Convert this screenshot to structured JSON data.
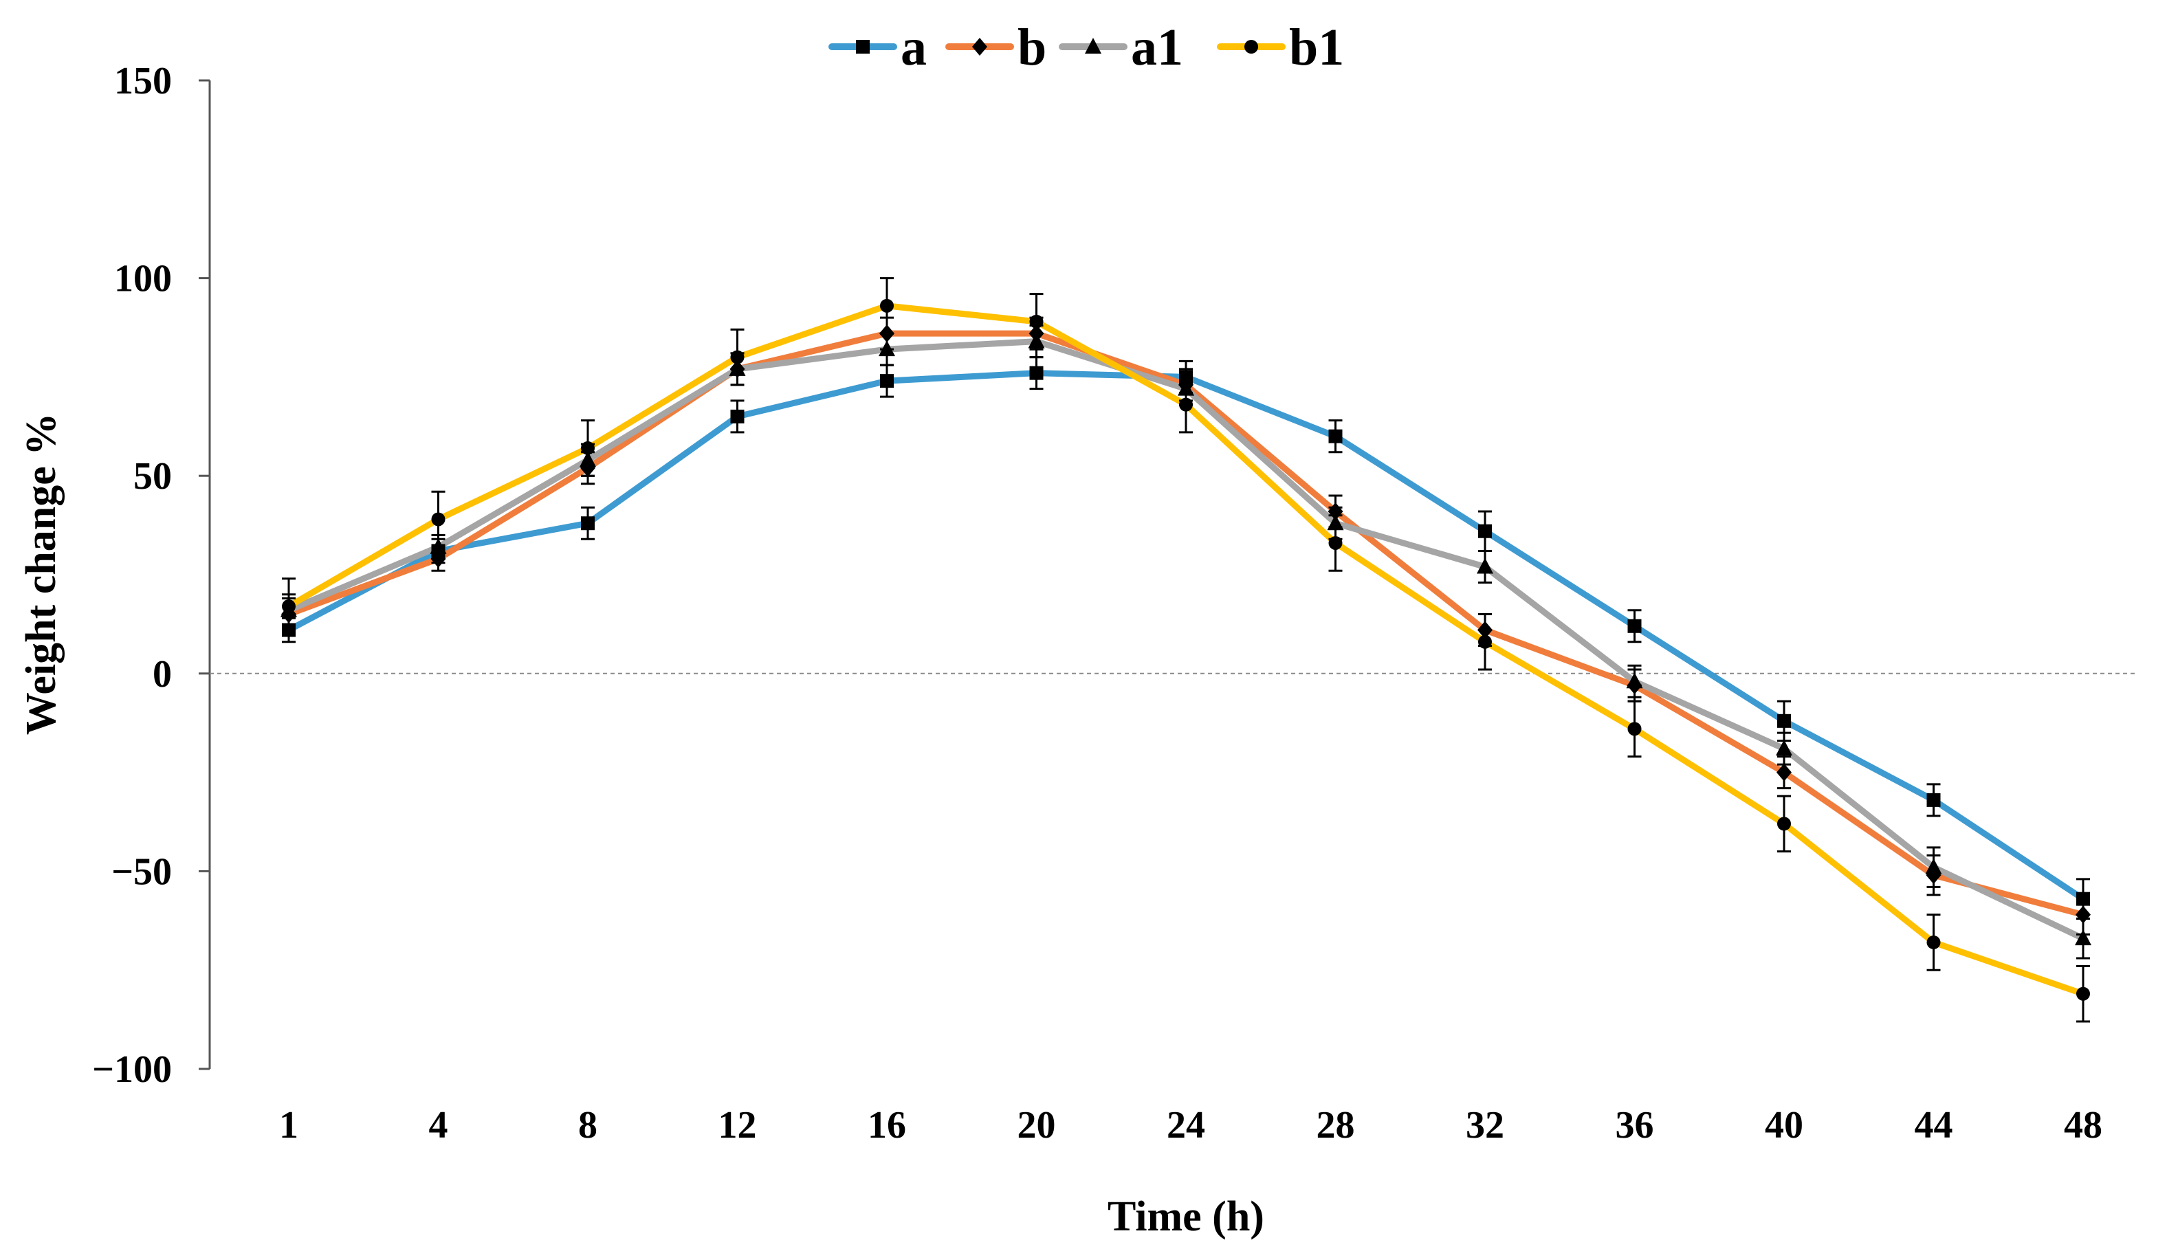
{
  "chart_data": {
    "type": "line",
    "title": "",
    "xlabel": "Time (h)",
    "ylabel": "Weight change %",
    "categories": [
      "1",
      "4",
      "8",
      "12",
      "16",
      "20",
      "24",
      "28",
      "32",
      "36",
      "40",
      "44",
      "48"
    ],
    "y_ticks": [
      "150",
      "100",
      "50",
      "0",
      "−50",
      "−100"
    ],
    "ylim": [
      -100,
      150
    ],
    "reference_line": 0,
    "legend_position": "top-center",
    "series": [
      {
        "name": "a",
        "color": "#3E9BD1",
        "marker": "square",
        "values": [
          11,
          31,
          38,
          65,
          74,
          76,
          75,
          60,
          36,
          12,
          -12,
          -32,
          -57
        ],
        "errors": [
          3,
          3,
          4,
          4,
          4,
          4,
          4,
          4,
          5,
          4,
          5,
          4,
          5
        ]
      },
      {
        "name": "b",
        "color": "#F07D3C",
        "marker": "diamond",
        "values": [
          15,
          29,
          52,
          77,
          86,
          86,
          73,
          41,
          11,
          -3,
          -25,
          -51,
          -61
        ],
        "errors": [
          4,
          3,
          4,
          4,
          4,
          4,
          4,
          4,
          4,
          4,
          4,
          5,
          5
        ]
      },
      {
        "name": "a1",
        "color": "#A5A5A5",
        "marker": "triangle",
        "values": [
          16,
          32,
          54,
          77,
          82,
          84,
          72,
          38,
          27,
          -2,
          -19,
          -49,
          -67
        ],
        "errors": [
          4,
          3,
          4,
          4,
          4,
          4,
          4,
          4,
          4,
          4,
          4,
          5,
          5
        ]
      },
      {
        "name": "b1",
        "color": "#FEC000",
        "marker": "circle",
        "values": [
          17,
          39,
          57,
          80,
          93,
          89,
          68,
          33,
          8,
          -14,
          -38,
          -68,
          -81
        ],
        "errors": [
          7,
          7,
          7,
          7,
          7,
          7,
          7,
          7,
          7,
          7,
          7,
          7,
          7
        ]
      }
    ]
  }
}
